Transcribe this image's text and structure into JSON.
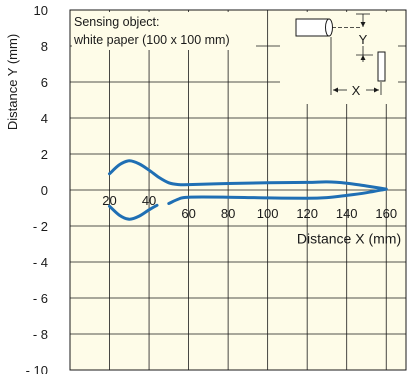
{
  "chart_data": {
    "type": "line",
    "title": "",
    "xlabel": "Distance X (mm)",
    "ylabel": "Distance Y (mm)",
    "xlim": [
      0,
      170
    ],
    "ylim": [
      -10,
      10
    ],
    "grid": true,
    "x_ticks": [
      20,
      40,
      60,
      80,
      100,
      120,
      140,
      160
    ],
    "y_ticks": [
      10,
      8,
      6,
      4,
      2,
      0,
      -2,
      -4,
      -6,
      -8,
      -10
    ],
    "y_tick_labels": [
      "10",
      "8",
      "6",
      "4",
      "2",
      "0",
      "- 2",
      "- 4",
      "- 6",
      "- 8",
      "- 10"
    ],
    "annotation": {
      "line1": "Sensing object:",
      "line2": "white paper (100 x 100 mm)"
    },
    "diagram": {
      "y_label": "Y",
      "x_label": "X"
    },
    "line_color": "#1f6fb4",
    "plot_background": "#fefce8",
    "series": [
      {
        "values_upper": [
          [
            20,
            0.9
          ],
          [
            25,
            1.4
          ],
          [
            30,
            1.62
          ],
          [
            35,
            1.45
          ],
          [
            40,
            1.1
          ],
          [
            45,
            0.7
          ],
          [
            50,
            0.4
          ],
          [
            55,
            0.3
          ],
          [
            60,
            0.3
          ],
          [
            80,
            0.36
          ],
          [
            100,
            0.4
          ],
          [
            120,
            0.42
          ],
          [
            130,
            0.45
          ],
          [
            140,
            0.38
          ],
          [
            150,
            0.22
          ],
          [
            160,
            0.05
          ]
        ],
        "values_lower_left": [
          [
            20,
            -0.9
          ],
          [
            25,
            -1.4
          ],
          [
            30,
            -1.62
          ],
          [
            35,
            -1.45
          ],
          [
            40,
            -1.1
          ],
          [
            44,
            -0.85
          ]
        ],
        "values_lower_right": [
          [
            50,
            -0.75
          ],
          [
            55,
            -0.5
          ],
          [
            60,
            -0.4
          ],
          [
            80,
            -0.4
          ],
          [
            100,
            -0.44
          ],
          [
            120,
            -0.46
          ],
          [
            130,
            -0.42
          ],
          [
            140,
            -0.3
          ],
          [
            150,
            -0.15
          ],
          [
            160,
            0.05
          ]
        ]
      }
    ]
  }
}
